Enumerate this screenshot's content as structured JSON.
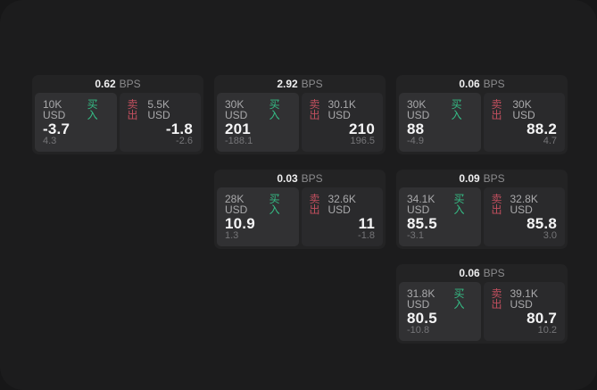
{
  "labels": {
    "buy": "买入",
    "sell": "卖出",
    "bps": "BPS"
  },
  "colors": {
    "buy_accent": "#35bd86",
    "sell_accent": "#c14f5e",
    "card_bg": "#232324",
    "buy_tile_bg": "#313133",
    "sell_tile_bg": "#2a2a2c",
    "surface_bg": "#1c1c1d"
  },
  "cards": [
    {
      "spread_bps": "0.62",
      "buy": {
        "amount": "10K USD",
        "price": "-3.7",
        "delta": "4.3"
      },
      "sell": {
        "amount": "5.5K USD",
        "price": "-1.8",
        "delta": "-2.6"
      }
    },
    {
      "spread_bps": "2.92",
      "buy": {
        "amount": "30K USD",
        "price": "201",
        "delta": "-188.1"
      },
      "sell": {
        "amount": "30.1K USD",
        "price": "210",
        "delta": "196.5"
      }
    },
    {
      "spread_bps": "0.06",
      "buy": {
        "amount": "30K USD",
        "price": "88",
        "delta": "-4.9"
      },
      "sell": {
        "amount": "30K USD",
        "price": "88.2",
        "delta": "4.7"
      }
    },
    {
      "spread_bps": "0.03",
      "buy": {
        "amount": "28K USD",
        "price": "10.9",
        "delta": "1.3"
      },
      "sell": {
        "amount": "32.6K USD",
        "price": "11",
        "delta": "-1.8"
      }
    },
    {
      "spread_bps": "0.09",
      "buy": {
        "amount": "34.1K USD",
        "price": "85.5",
        "delta": "-3.1"
      },
      "sell": {
        "amount": "32.8K USD",
        "price": "85.8",
        "delta": "3.0"
      }
    },
    {
      "spread_bps": "0.06",
      "buy": {
        "amount": "31.8K USD",
        "price": "80.5",
        "delta": "-10.8"
      },
      "sell": {
        "amount": "39.1K USD",
        "price": "80.7",
        "delta": "10.2"
      }
    }
  ]
}
